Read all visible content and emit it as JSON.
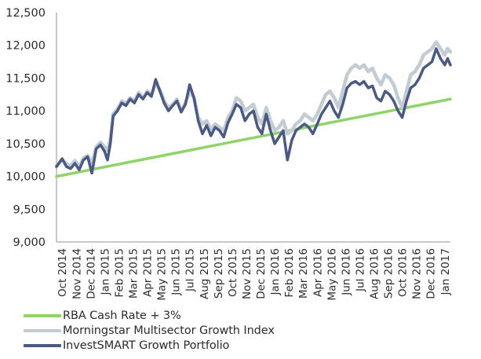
{
  "chart_data": {
    "type": "line",
    "title": "",
    "xlabel": "",
    "ylabel": "",
    "ylim": [
      9000,
      12500
    ],
    "yticks": [
      9000,
      9500,
      10000,
      10500,
      11000,
      11500,
      12000,
      12500
    ],
    "ytick_labels": [
      "9,000",
      "9,500",
      "10,000",
      "10,500",
      "11,000",
      "11,500",
      "12,000",
      "12,500"
    ],
    "x_categories": [
      "Oct 2014",
      "Nov 2014",
      "Dec 2014",
      "Jan 2015",
      "Feb 2015",
      "Mar 2015",
      "Apr 2015",
      "May 2015",
      "Jun 2015",
      "Jul 2015",
      "Aug 2015",
      "Sep 2015",
      "Oct 2015",
      "Nov 2015",
      "Dec 2015",
      "Jan 2016",
      "Feb 2016",
      "Mar 2016",
      "Apr 2016",
      "May 2016",
      "Jun 2016",
      "Jul 2016",
      "Aug 2016",
      "Sep 2016",
      "Oct 2016",
      "Nov 2016",
      "Dec 2016",
      "Jan 2017"
    ],
    "x_range_months": [
      -0.4,
      27.4
    ],
    "grid": false,
    "legend_position": "bottom-left",
    "series": [
      {
        "name": "RBA Cash Rate + 3%",
        "color": "#8ed46a",
        "points": [
          [
            -0.4,
            10000
          ],
          [
            27.4,
            11180
          ]
        ]
      },
      {
        "name": "Morningstar Multisector Growth Index",
        "color": "#c3cbd3",
        "points": [
          [
            -0.4,
            10160
          ],
          [
            0,
            10250
          ],
          [
            0.3,
            10200
          ],
          [
            0.6,
            10160
          ],
          [
            0.9,
            10240
          ],
          [
            1.2,
            10150
          ],
          [
            1.5,
            10280
          ],
          [
            1.8,
            10320
          ],
          [
            2.1,
            10200
          ],
          [
            2.4,
            10450
          ],
          [
            2.7,
            10520
          ],
          [
            3.0,
            10450
          ],
          [
            3.2,
            10400
          ],
          [
            3.4,
            10560
          ],
          [
            3.6,
            10960
          ],
          [
            3.9,
            11020
          ],
          [
            4.2,
            11150
          ],
          [
            4.5,
            11120
          ],
          [
            4.8,
            11200
          ],
          [
            5.1,
            11150
          ],
          [
            5.4,
            11280
          ],
          [
            5.7,
            11200
          ],
          [
            6.0,
            11300
          ],
          [
            6.3,
            11250
          ],
          [
            6.6,
            11420
          ],
          [
            6.9,
            11320
          ],
          [
            7.2,
            11150
          ],
          [
            7.5,
            11050
          ],
          [
            7.8,
            11100
          ],
          [
            8.1,
            11180
          ],
          [
            8.4,
            11000
          ],
          [
            8.7,
            11120
          ],
          [
            9.0,
            11300
          ],
          [
            9.3,
            11200
          ],
          [
            9.6,
            10900
          ],
          [
            9.9,
            10800
          ],
          [
            10.2,
            10850
          ],
          [
            10.5,
            10720
          ],
          [
            10.8,
            10800
          ],
          [
            11.1,
            10750
          ],
          [
            11.4,
            10700
          ],
          [
            11.7,
            10900
          ],
          [
            12.0,
            11000
          ],
          [
            12.3,
            11200
          ],
          [
            12.6,
            11150
          ],
          [
            12.9,
            11000
          ],
          [
            13.2,
            11050
          ],
          [
            13.5,
            11100
          ],
          [
            13.8,
            10900
          ],
          [
            14.1,
            10800
          ],
          [
            14.4,
            11050
          ],
          [
            14.7,
            10850
          ],
          [
            15.0,
            10700
          ],
          [
            15.3,
            10750
          ],
          [
            15.6,
            10850
          ],
          [
            15.9,
            10650
          ],
          [
            16.2,
            10700
          ],
          [
            16.5,
            10800
          ],
          [
            16.8,
            10850
          ],
          [
            17.1,
            10950
          ],
          [
            17.4,
            10900
          ],
          [
            17.7,
            10850
          ],
          [
            18.0,
            10950
          ],
          [
            18.3,
            11100
          ],
          [
            18.6,
            11250
          ],
          [
            18.9,
            11300
          ],
          [
            19.2,
            11200
          ],
          [
            19.5,
            11050
          ],
          [
            19.8,
            11300
          ],
          [
            20.1,
            11550
          ],
          [
            20.4,
            11650
          ],
          [
            20.7,
            11700
          ],
          [
            21.0,
            11650
          ],
          [
            21.3,
            11700
          ],
          [
            21.6,
            11600
          ],
          [
            21.9,
            11650
          ],
          [
            22.2,
            11500
          ],
          [
            22.5,
            11400
          ],
          [
            22.8,
            11550
          ],
          [
            23.1,
            11500
          ],
          [
            23.4,
            11400
          ],
          [
            23.7,
            11200
          ],
          [
            24.0,
            11050
          ],
          [
            24.3,
            11300
          ],
          [
            24.6,
            11550
          ],
          [
            24.9,
            11600
          ],
          [
            25.2,
            11700
          ],
          [
            25.5,
            11850
          ],
          [
            25.8,
            11900
          ],
          [
            26.1,
            11950
          ],
          [
            26.4,
            12050
          ],
          [
            26.7,
            11950
          ],
          [
            27.0,
            11850
          ],
          [
            27.2,
            11950
          ],
          [
            27.4,
            11900
          ]
        ]
      },
      {
        "name": "InvestSMART Growth Portfolio",
        "color": "#4a5a82",
        "points": [
          [
            -0.4,
            10150
          ],
          [
            0,
            10270
          ],
          [
            0.3,
            10150
          ],
          [
            0.6,
            10120
          ],
          [
            0.9,
            10200
          ],
          [
            1.2,
            10100
          ],
          [
            1.5,
            10250
          ],
          [
            1.8,
            10300
          ],
          [
            2.1,
            10050
          ],
          [
            2.4,
            10420
          ],
          [
            2.7,
            10480
          ],
          [
            3.0,
            10380
          ],
          [
            3.2,
            10250
          ],
          [
            3.4,
            10500
          ],
          [
            3.6,
            10920
          ],
          [
            3.9,
            11000
          ],
          [
            4.2,
            11120
          ],
          [
            4.5,
            11080
          ],
          [
            4.8,
            11180
          ],
          [
            5.1,
            11120
          ],
          [
            5.4,
            11250
          ],
          [
            5.7,
            11180
          ],
          [
            6.0,
            11280
          ],
          [
            6.3,
            11220
          ],
          [
            6.6,
            11480
          ],
          [
            6.9,
            11300
          ],
          [
            7.2,
            11120
          ],
          [
            7.5,
            11000
          ],
          [
            7.8,
            11080
          ],
          [
            8.1,
            11150
          ],
          [
            8.4,
            10980
          ],
          [
            8.7,
            11100
          ],
          [
            9.0,
            11400
          ],
          [
            9.3,
            11200
          ],
          [
            9.6,
            10850
          ],
          [
            9.9,
            10650
          ],
          [
            10.2,
            10780
          ],
          [
            10.5,
            10620
          ],
          [
            10.8,
            10750
          ],
          [
            11.1,
            10700
          ],
          [
            11.4,
            10600
          ],
          [
            11.7,
            10820
          ],
          [
            12.0,
            10950
          ],
          [
            12.3,
            11100
          ],
          [
            12.6,
            11050
          ],
          [
            12.9,
            10850
          ],
          [
            13.2,
            10950
          ],
          [
            13.5,
            11000
          ],
          [
            13.8,
            10750
          ],
          [
            14.1,
            10650
          ],
          [
            14.4,
            10950
          ],
          [
            14.7,
            10700
          ],
          [
            15.0,
            10500
          ],
          [
            15.3,
            10600
          ],
          [
            15.6,
            10700
          ],
          [
            15.9,
            10250
          ],
          [
            16.2,
            10550
          ],
          [
            16.5,
            10700
          ],
          [
            16.8,
            10750
          ],
          [
            17.1,
            10800
          ],
          [
            17.4,
            10750
          ],
          [
            17.7,
            10650
          ],
          [
            18.0,
            10800
          ],
          [
            18.3,
            10950
          ],
          [
            18.6,
            11050
          ],
          [
            18.9,
            11150
          ],
          [
            19.2,
            11000
          ],
          [
            19.5,
            10900
          ],
          [
            19.8,
            11100
          ],
          [
            20.1,
            11350
          ],
          [
            20.4,
            11420
          ],
          [
            20.7,
            11450
          ],
          [
            21.0,
            11400
          ],
          [
            21.3,
            11450
          ],
          [
            21.6,
            11350
          ],
          [
            21.9,
            11380
          ],
          [
            22.2,
            11200
          ],
          [
            22.5,
            11150
          ],
          [
            22.8,
            11300
          ],
          [
            23.1,
            11250
          ],
          [
            23.4,
            11150
          ],
          [
            23.7,
            11000
          ],
          [
            24.0,
            10900
          ],
          [
            24.3,
            11150
          ],
          [
            24.6,
            11350
          ],
          [
            24.9,
            11400
          ],
          [
            25.2,
            11500
          ],
          [
            25.5,
            11650
          ],
          [
            25.8,
            11700
          ],
          [
            26.1,
            11750
          ],
          [
            26.4,
            11950
          ],
          [
            26.7,
            11800
          ],
          [
            27.0,
            11700
          ],
          [
            27.2,
            11800
          ],
          [
            27.4,
            11700
          ]
        ]
      }
    ]
  }
}
